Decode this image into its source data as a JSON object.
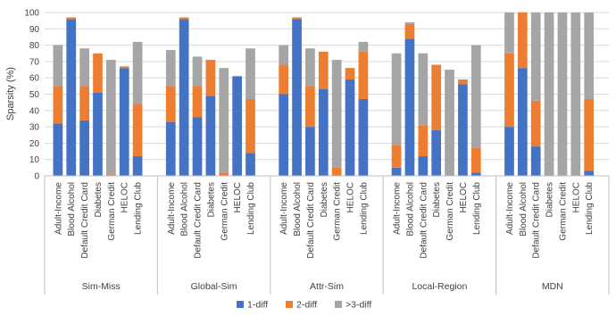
{
  "chart_data": {
    "type": "bar",
    "stacked": true,
    "ylabel": "Sparsity (%)",
    "ylim": [
      0,
      100
    ],
    "yticks": [
      0,
      10,
      20,
      30,
      40,
      50,
      60,
      70,
      80,
      90,
      100
    ],
    "grid": true,
    "legend_position": "bottom",
    "categories": [
      "Adult-Income",
      "Blood Alcohol",
      "Default Credit Card",
      "Diabetes",
      "German Credit",
      "HELOC",
      "Lending Club"
    ],
    "groups": [
      "Sim-Miss",
      "Global-Sim",
      "Attr-Sim",
      "Local-Region",
      "MDN"
    ],
    "series": [
      {
        "name": "1-diff",
        "color": "#4472C4",
        "values": [
          [
            32,
            96,
            34,
            51,
            0,
            66,
            12
          ],
          [
            33,
            96,
            36,
            49,
            0,
            61,
            14
          ],
          [
            50,
            96,
            30,
            53,
            0,
            59,
            47
          ],
          [
            5,
            84,
            12,
            28,
            0,
            56,
            2
          ],
          [
            30,
            66,
            18,
            0,
            0,
            0,
            3
          ]
        ]
      },
      {
        "name": "2-diff",
        "color": "#ED7D31",
        "values": [
          [
            23,
            1,
            21,
            24,
            1,
            1,
            32
          ],
          [
            22,
            1,
            19,
            22,
            2,
            0,
            33
          ],
          [
            18,
            1,
            25,
            23,
            5,
            7,
            29
          ],
          [
            14,
            9,
            19,
            40,
            0,
            3,
            15
          ],
          [
            45,
            34,
            28,
            0,
            0,
            0,
            44
          ]
        ]
      },
      {
        "name": ">3-diff",
        "color": "#A5A5A5",
        "values": [
          [
            25,
            0,
            23,
            0,
            70,
            0,
            38
          ],
          [
            22,
            0,
            18,
            0,
            64,
            0,
            31
          ],
          [
            12,
            0,
            23,
            0,
            66,
            0,
            6
          ],
          [
            56,
            1,
            44,
            0,
            65,
            0,
            63
          ],
          [
            25,
            0,
            54,
            100,
            100,
            100,
            53
          ]
        ]
      }
    ]
  }
}
